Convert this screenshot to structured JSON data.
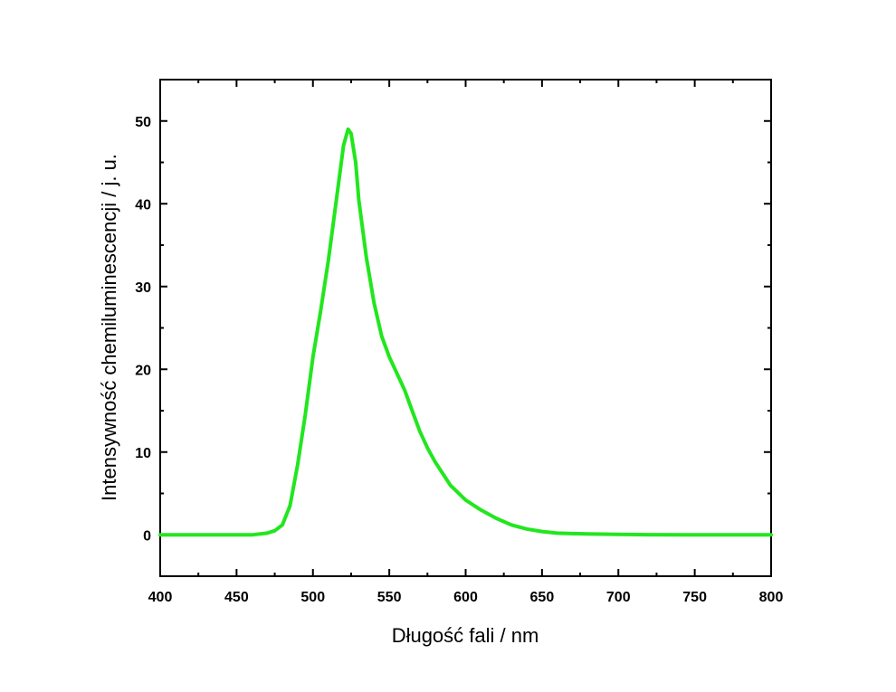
{
  "chart_data": {
    "type": "line",
    "title": "",
    "xlabel": "Długość fali / nm",
    "ylabel": "Intensywność chemiluminescencji / j. u.",
    "xlim": [
      400,
      800
    ],
    "ylim": [
      -5,
      55
    ],
    "xticks": [
      400,
      450,
      500,
      550,
      600,
      650,
      700,
      750,
      800
    ],
    "yticks": [
      0,
      10,
      20,
      30,
      40,
      50
    ],
    "xtick_labels": [
      "400",
      "450",
      "500",
      "550",
      "600",
      "650",
      "700",
      "750",
      "800"
    ],
    "ytick_labels": [
      "0",
      "10",
      "20",
      "30",
      "40",
      "50"
    ],
    "grid": false,
    "legend": "none",
    "series": [
      {
        "color": "#22e61e",
        "x": [
          400,
          440,
          460,
          470,
          475,
          480,
          485,
          490,
          495,
          500,
          505,
          510,
          515,
          520,
          523,
          525,
          528,
          530,
          535,
          540,
          545,
          550,
          555,
          560,
          565,
          570,
          575,
          580,
          590,
          600,
          610,
          620,
          630,
          640,
          650,
          660,
          680,
          700,
          720,
          750,
          780,
          800
        ],
        "y": [
          0,
          0,
          0,
          0.2,
          0.5,
          1.2,
          3.5,
          8.5,
          14.5,
          21.5,
          27,
          33,
          40,
          47,
          49,
          48.5,
          45,
          40.5,
          33.5,
          28,
          24,
          21.5,
          19.5,
          17.5,
          15,
          12.5,
          10.5,
          8.8,
          6,
          4.2,
          3,
          2,
          1.2,
          0.7,
          0.4,
          0.2,
          0.1,
          0.05,
          0.02,
          0,
          0,
          0
        ]
      }
    ]
  }
}
